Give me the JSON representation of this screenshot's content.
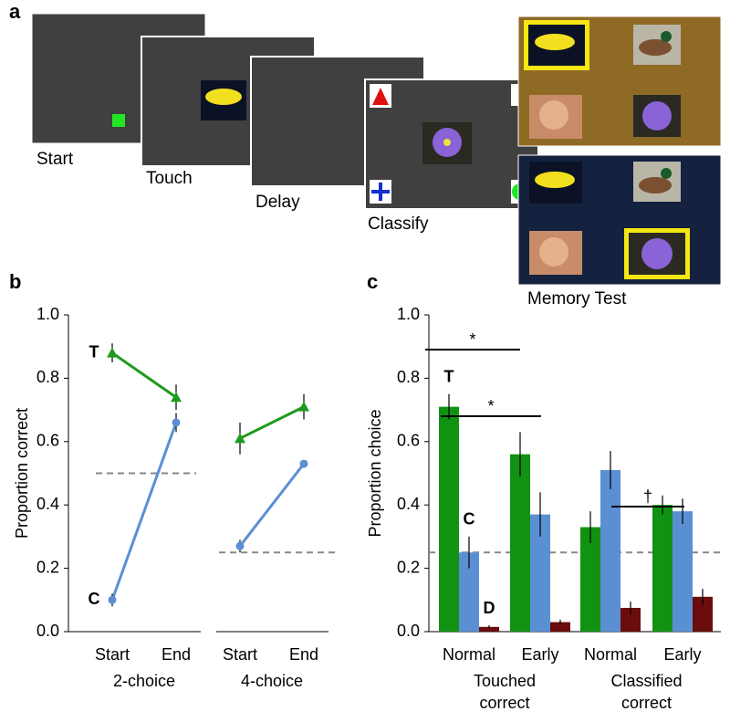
{
  "panel_labels": [
    "a",
    "b",
    "c"
  ],
  "schematic": {
    "screens": [
      "Start",
      "Touch",
      "Delay",
      "Classify"
    ],
    "memory_test": "Memory Test"
  },
  "chart_data": [
    {
      "type": "line",
      "ylabel": "Proportion correct",
      "ylim": [
        0,
        1
      ],
      "yticks": [
        {
          "value": 0,
          "label": "0.0"
        },
        0.2,
        0.4,
        0.6,
        0.8,
        {
          "value": 1,
          "label": "1.0"
        }
      ],
      "groups": [
        {
          "name": "2-choice",
          "categories": [
            "Start",
            "End"
          ],
          "chance": 0.5,
          "series": [
            {
              "name": "T",
              "color": "#1e9a1e",
              "marker": "triangle",
              "values": [
                0.88,
                0.74
              ],
              "errors": [
                0.03,
                0.04
              ]
            },
            {
              "name": "C",
              "color": "#5b8fd4",
              "marker": "circle",
              "values": [
                0.1,
                0.66
              ],
              "errors": [
                0.02,
                0.03
              ]
            }
          ]
        },
        {
          "name": "4-choice",
          "categories": [
            "Start",
            "End"
          ],
          "chance": 0.25,
          "series": [
            {
              "name": "T",
              "color": "#1e9a1e",
              "marker": "triangle",
              "values": [
                0.61,
                0.71
              ],
              "errors": [
                0.05,
                0.04
              ]
            },
            {
              "name": "C",
              "color": "#5b8fd4",
              "marker": "circle",
              "values": [
                0.27,
                0.53
              ],
              "errors": [
                0.02,
                0.01
              ]
            }
          ]
        }
      ]
    },
    {
      "type": "bar",
      "ylabel": "Proportion choice",
      "ylim": [
        0,
        1
      ],
      "yticks": [
        {
          "value": 0,
          "label": "0.0"
        },
        0.2,
        0.4,
        0.6,
        0.8,
        {
          "value": 1,
          "label": "1.0"
        }
      ],
      "chance": 0.25,
      "categories": [
        "Normal",
        "Early",
        "Normal",
        "Early"
      ],
      "groups": [
        {
          "name": "Touched",
          "sub": "correct",
          "color": "#1e9a1e"
        },
        {
          "name": "Classified",
          "sub": "correct",
          "color": "#5b8fd4"
        }
      ],
      "series": [
        {
          "name": "T",
          "color": "#129212",
          "values": [
            0.71,
            0.56,
            0.33,
            0.4
          ],
          "errors": [
            0.04,
            0.07,
            0.05,
            0.03
          ]
        },
        {
          "name": "C",
          "color": "#5b8fd4",
          "values": [
            0.25,
            0.37,
            0.51,
            0.38
          ],
          "errors": [
            0.05,
            0.07,
            0.06,
            0.04
          ]
        },
        {
          "name": "D",
          "color": "#6b0d0d",
          "values": [
            0.015,
            0.03,
            0.075,
            0.11
          ],
          "errors": [
            0.005,
            0.008,
            0.02,
            0.025
          ]
        }
      ],
      "annotations": [
        "*",
        "*",
        "†"
      ]
    }
  ]
}
